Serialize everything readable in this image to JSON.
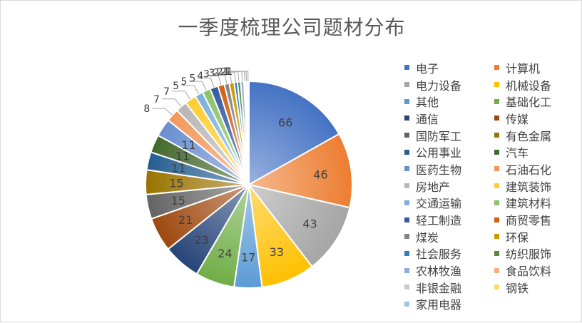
{
  "chart_data": {
    "type": "pie",
    "title": "一季度梳理公司题材分布",
    "legend_position": "right",
    "slices": [
      {
        "label": "电子",
        "value": 66,
        "color": "#4472c4"
      },
      {
        "label": "计算机",
        "value": 46,
        "color": "#ed7d31"
      },
      {
        "label": "电力设备",
        "value": 43,
        "color": "#a5a5a5"
      },
      {
        "label": "机械设备",
        "value": 33,
        "color": "#ffc000"
      },
      {
        "label": "其他",
        "value": 17,
        "color": "#5b9bd5"
      },
      {
        "label": "基础化工",
        "value": 24,
        "color": "#70ad47"
      },
      {
        "label": "通信",
        "value": 23,
        "color": "#264478"
      },
      {
        "label": "传媒",
        "value": 21,
        "color": "#9e480e"
      },
      {
        "label": "国防军工",
        "value": 15,
        "color": "#636363"
      },
      {
        "label": "有色金属",
        "value": 15,
        "color": "#997300"
      },
      {
        "label": "公用事业",
        "value": 11,
        "color": "#255e91"
      },
      {
        "label": "汽车",
        "value": 11,
        "color": "#43682b"
      },
      {
        "label": "医药生物",
        "value": 11,
        "color": "#698ed0"
      },
      {
        "label": "石油石化",
        "value": 8,
        "color": "#f1975a"
      },
      {
        "label": "房地产",
        "value": 7,
        "color": "#b7b7b7"
      },
      {
        "label": "建筑装饰",
        "value": 7,
        "color": "#ffcd33"
      },
      {
        "label": "交通运输",
        "value": 5,
        "color": "#7cafdd"
      },
      {
        "label": "建筑材料",
        "value": 5,
        "color": "#8cc168"
      },
      {
        "label": "轻工制造",
        "value": 5,
        "color": "#335aa1"
      },
      {
        "label": "商贸零售",
        "value": 4,
        "color": "#d26012"
      },
      {
        "label": "煤炭",
        "value": 3,
        "color": "#848484"
      },
      {
        "label": "环保",
        "value": 3,
        "color": "#cc9a00"
      },
      {
        "label": "社会服务",
        "value": 2,
        "color": "#327dc2"
      },
      {
        "label": "纺织服饰",
        "value": 2,
        "color": "#5a8a39"
      },
      {
        "label": "农林牧渔",
        "value": 2,
        "color": "#8faadc"
      },
      {
        "label": "食品饮料",
        "value": 1,
        "color": "#f4b183"
      },
      {
        "label": "非银金融",
        "value": 1,
        "color": "#c9c9c9"
      },
      {
        "label": "钢铁",
        "value": 1,
        "color": "#ffd966"
      },
      {
        "label": "家用电器",
        "value": 0,
        "color": "#9dc3e6"
      }
    ]
  }
}
